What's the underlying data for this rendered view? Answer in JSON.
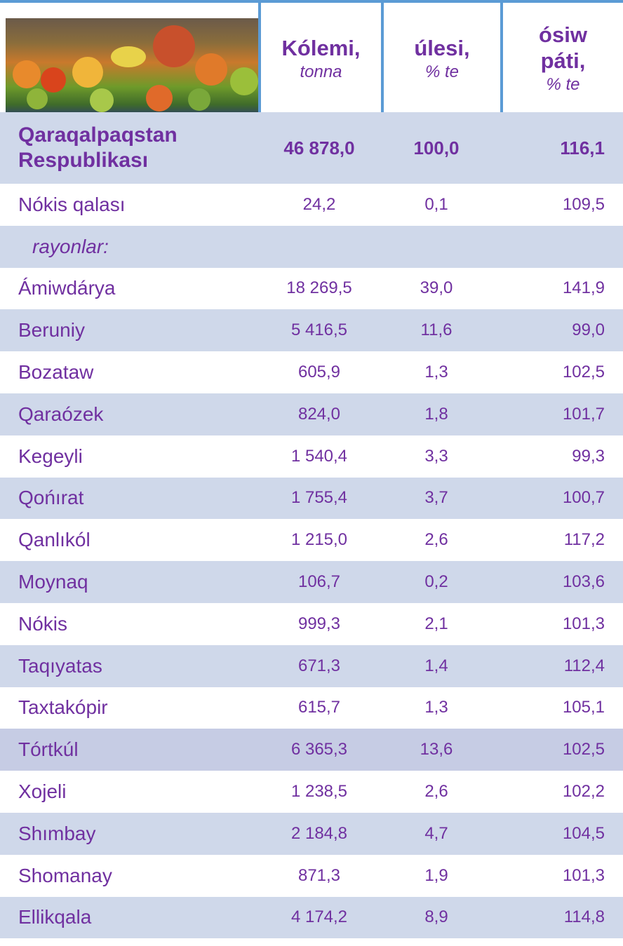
{
  "header": {
    "columns": [
      {
        "title": "Kólemi,",
        "unit": "tonna"
      },
      {
        "title": "úlesi,",
        "unit": "% te"
      },
      {
        "title": "ósiw páti,",
        "unit": "% te"
      }
    ]
  },
  "table": {
    "total": [
      "Qaraqalpaqstan Respublikası",
      "46 878,0",
      "100,0",
      "116,1"
    ],
    "rows": [
      [
        "Nókis qalası",
        "24,2",
        "0,1",
        "109,5"
      ],
      [
        "rayonlar:"
      ],
      [
        "Ámiwdárya",
        "18 269,5",
        "39,0",
        "141,9"
      ],
      [
        "Beruniy",
        "5 416,5",
        "11,6",
        "99,0"
      ],
      [
        "Bozataw",
        "605,9",
        "1,3",
        "102,5"
      ],
      [
        "Qaraózek",
        "824,0",
        "1,8",
        "101,7"
      ],
      [
        "Kegeyli",
        "1 540,4",
        "3,3",
        "99,3"
      ],
      [
        "Qońırat",
        "1 755,4",
        "3,7",
        "100,7"
      ],
      [
        "Qanlıkól",
        "1 215,0",
        "2,6",
        "117,2"
      ],
      [
        "Moynaq",
        "106,7",
        "0,2",
        "103,6"
      ],
      [
        "Nókis",
        "999,3",
        "2,1",
        "101,3"
      ],
      [
        "Taqıyatas",
        "671,3",
        "1,4",
        "112,4"
      ],
      [
        "Taxtakópir",
        "615,7",
        "1,3",
        "105,1"
      ],
      [
        "Tórtkúl",
        "6 365,3",
        "13,6",
        "102,5"
      ],
      [
        "Xojeli",
        "1 238,5",
        "2,6",
        "102,2"
      ],
      [
        "Shımbay",
        "2 184,8",
        "4,7",
        "104,5"
      ],
      [
        "Shomanay",
        "871,3",
        "1,9",
        "101,3"
      ],
      [
        "Ellikqala",
        "4 174,2",
        "8,9",
        "114,8"
      ]
    ]
  }
}
